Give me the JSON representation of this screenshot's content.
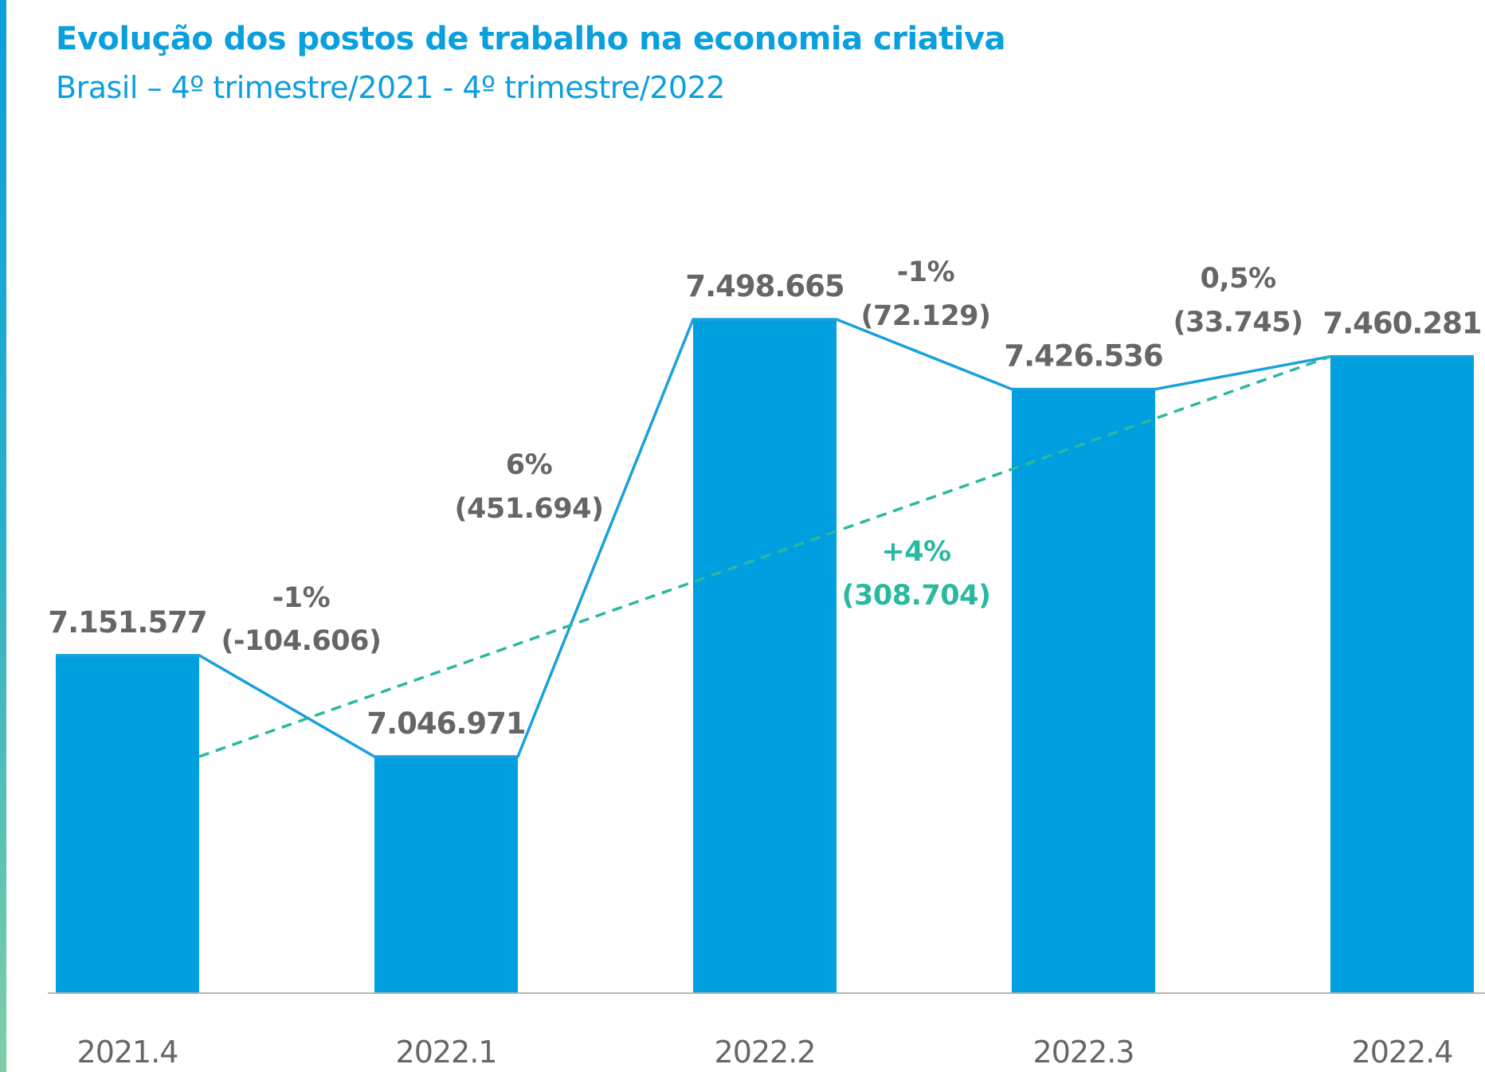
{
  "chart_data": {
    "type": "bar",
    "title": "Evolução dos postos de trabalho na economia criativa",
    "subtitle": "Brasil – 4º trimestre/2021 - 4º trimestre/2022",
    "categories": [
      "2021.4",
      "2022.1",
      "2022.2",
      "2022.3",
      "2022.4"
    ],
    "values": [
      7151577,
      7046971,
      7498665,
      7426536,
      7460281
    ],
    "value_labels": [
      "7.151.577",
      "7.046.971",
      "7.498.665",
      "7.426.536",
      "7.460.281"
    ],
    "changes": [
      {
        "pct": "-1%",
        "abs": "(-104.606)"
      },
      {
        "pct": "6%",
        "abs": "(451.694)"
      },
      {
        "pct": "-1%",
        "abs": "(72.129)"
      },
      {
        "pct": "0,5%",
        "abs": "(33.745)"
      }
    ],
    "total_change": {
      "pct": "+4%",
      "abs": "(308.704)"
    },
    "colors": {
      "bar": "#009fe0",
      "line": "#1aa0dc",
      "trend": "#2bb8a0",
      "text": "#666666",
      "title": "#0a9fdd"
    }
  }
}
